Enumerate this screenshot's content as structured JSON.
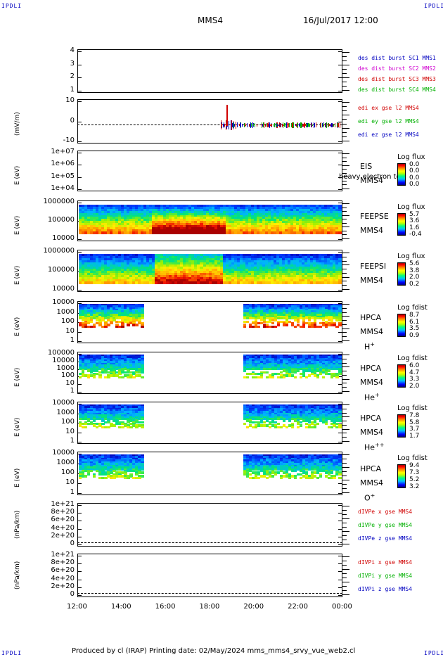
{
  "corners": {
    "tl": "IPDLI",
    "tr": "IPDLI",
    "bl": "IPDLI",
    "br": "IPDLI"
  },
  "header": {
    "spacecraft": "MMS4",
    "datetime": "16/Jul/2017 12:00"
  },
  "footer": {
    "text": "Produced by cl (IRAP)   Printing date: 02/May/2024   mms_mms4_srvy_vue_web2.cl"
  },
  "chart_data": {
    "type": "stacked time-series panels",
    "x_ticks": [
      "12:00",
      "14:00",
      "16:00",
      "18:00",
      "20:00",
      "22:00",
      "00:00"
    ],
    "x_range_hours": [
      12,
      24
    ],
    "panels": [
      {
        "id": "dist",
        "ylabel": "",
        "yticks": [
          "4",
          "3",
          "2",
          "1"
        ],
        "legend": [
          {
            "text": "des dist burst SC1 MMS1",
            "color": "#0000c0"
          },
          {
            "text": "des dist burst SC2 MMS2",
            "color": "#d000d0"
          },
          {
            "text": "des dist burst SC3 MMS3",
            "color": "#d00000"
          },
          {
            "text": "des dist burst SC4 MMS4",
            "color": "#00b000"
          }
        ]
      },
      {
        "id": "edi",
        "ylabel": "(mV/m)",
        "yticks": [
          "10",
          "0",
          "-10"
        ],
        "legend": [
          {
            "text": "edi ex gse l2 MMS4",
            "color": "#d00000"
          },
          {
            "text": "edi ey gse l2 MMS4",
            "color": "#00b000"
          },
          {
            "text": "edi ez gse l2 MMS4",
            "color": "#0000c0"
          }
        ]
      },
      {
        "id": "eis",
        "ylabel": "E (eV)",
        "yticks": [
          "1e+07",
          "1e+06",
          "1e+05",
          "1e+04"
        ],
        "label1": "EIS",
        "label2": "MMS4",
        "overlay": "heavy electron to",
        "cbtitle": "Log flux",
        "cbvals": [
          "0.0",
          "0.0",
          "0.0",
          "0.0"
        ]
      },
      {
        "id": "feepse",
        "ylabel": "E (eV)",
        "yticks": [
          "1000000",
          "100000",
          "10000"
        ],
        "label1": "FEEPSE",
        "label2": "MMS4",
        "cbtitle": "Log flux",
        "cbvals": [
          "5.7",
          "3.6",
          "1.6",
          "-0.4"
        ]
      },
      {
        "id": "feepsi",
        "ylabel": "E (eV)",
        "yticks": [
          "1000000",
          "100000",
          "10000"
        ],
        "label1": "FEEPSI",
        "label2": "MMS4",
        "cbtitle": "Log flux",
        "cbvals": [
          "5.6",
          "3.8",
          "2.0",
          "0.2"
        ]
      },
      {
        "id": "hpca_h",
        "ylabel": "E (eV)",
        "yticks": [
          "10000",
          "1000",
          "100",
          "10",
          "1"
        ],
        "label1": "HPCA",
        "label2": "MMS4",
        "species": "H",
        "sup": "+",
        "cbtitle": "Log fdist",
        "cbvals": [
          "8.7",
          "6.1",
          "3.5",
          "0.9"
        ]
      },
      {
        "id": "hpca_he",
        "ylabel": "E (eV)",
        "yticks": [
          "100000",
          "10000",
          "1000",
          "100",
          "10",
          "1"
        ],
        "label1": "HPCA",
        "label2": "MMS4",
        "species": "He",
        "sup": "+",
        "cbtitle": "Log fdist",
        "cbvals": [
          "6.0",
          "4.7",
          "3.3",
          "2.0"
        ]
      },
      {
        "id": "hpca_he2",
        "ylabel": "E (eV)",
        "yticks": [
          "10000",
          "1000",
          "100",
          "10",
          "1"
        ],
        "label1": "HPCA",
        "label2": "MMS4",
        "species": "He",
        "sup": "++",
        "cbtitle": "Log fdist",
        "cbvals": [
          "7.8",
          "5.8",
          "3.7",
          "1.7"
        ]
      },
      {
        "id": "hpca_o",
        "ylabel": "E (eV)",
        "yticks": [
          "10000",
          "1000",
          "100",
          "10",
          "1"
        ],
        "label1": "HPCA",
        "label2": "MMS4",
        "species": "O",
        "sup": "+",
        "cbtitle": "Log fdist",
        "cbvals": [
          "9.4",
          "7.3",
          "5.2",
          "3.2"
        ]
      },
      {
        "id": "divpe",
        "ylabel": "(nPa/km)",
        "yticks": [
          "1e+21",
          "8e+20",
          "6e+20",
          "4e+20",
          "2e+20",
          "0"
        ],
        "legend": [
          {
            "text": "dIVPe x gse MMS4",
            "color": "#d00000"
          },
          {
            "text": "dIVPe y gse MMS4",
            "color": "#00b000"
          },
          {
            "text": "dIVPe z gse MMS4",
            "color": "#0000c0"
          }
        ]
      },
      {
        "id": "divpi",
        "ylabel": "(nPa/km)",
        "yticks": [
          "1e+21",
          "8e+20",
          "6e+20",
          "4e+20",
          "2e+20",
          "0"
        ],
        "legend": [
          {
            "text": "dIVPi x gse MMS4",
            "color": "#d00000"
          },
          {
            "text": "dIVPi y gse MMS4",
            "color": "#00b000"
          },
          {
            "text": "dIVPi z gse MMS4",
            "color": "#0000c0"
          }
        ]
      }
    ],
    "data_gaps_hours": {
      "hpca": [
        [
          15.0,
          19.5
        ]
      ]
    }
  }
}
